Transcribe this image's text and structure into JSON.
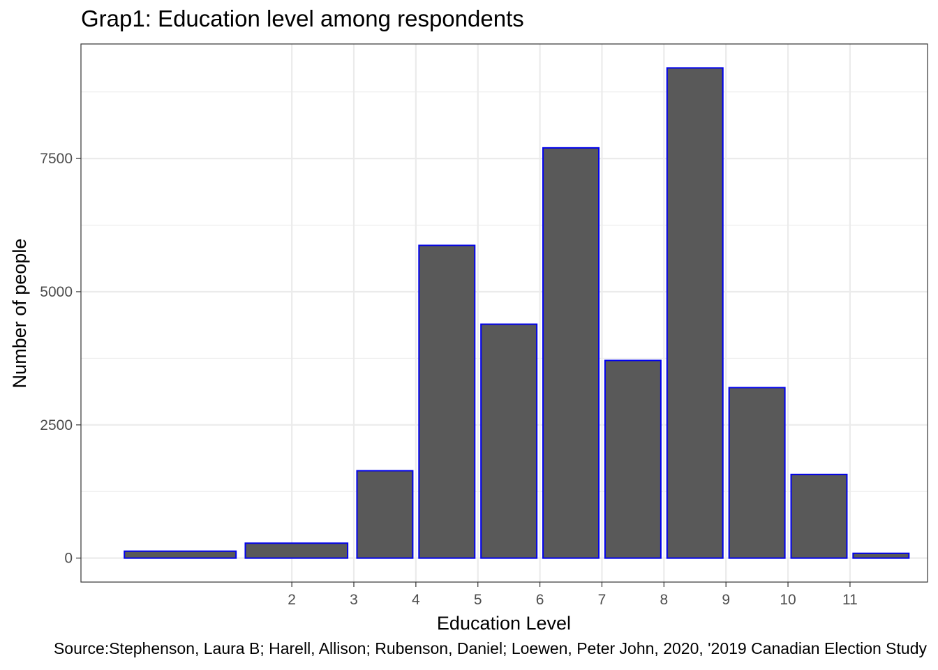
{
  "chart_data": {
    "type": "bar",
    "title": "Grap1: Education level among respondents",
    "xlabel": "Education Level",
    "ylabel": "Number of people",
    "caption": "Source:Stephenson, Laura B; Harell, Allison; Rubenson, Daniel; Loewen, Peter John, 2020, '2019 Canadian Election Study",
    "x_ticks": [
      2,
      3,
      4,
      5,
      6,
      7,
      8,
      9,
      10,
      11
    ],
    "y_ticks": [
      0,
      2500,
      5000,
      7500
    ],
    "xlim": [
      -1.4,
      12.25
    ],
    "ylim": [
      -450,
      9650
    ],
    "bars": [
      {
        "x0": -0.7,
        "x1": 1.1,
        "value": 130
      },
      {
        "x0": 1.25,
        "x1": 2.9,
        "value": 280
      },
      {
        "x0": 3.05,
        "x1": 3.95,
        "value": 1640
      },
      {
        "x0": 4.05,
        "x1": 4.95,
        "value": 5870
      },
      {
        "x0": 5.05,
        "x1": 5.95,
        "value": 4390
      },
      {
        "x0": 6.05,
        "x1": 6.95,
        "value": 7700
      },
      {
        "x0": 7.05,
        "x1": 7.95,
        "value": 3710
      },
      {
        "x0": 8.05,
        "x1": 8.95,
        "value": 9200
      },
      {
        "x0": 9.05,
        "x1": 9.95,
        "value": 3200
      },
      {
        "x0": 10.05,
        "x1": 10.95,
        "value": 1570
      },
      {
        "x0": 11.05,
        "x1": 11.95,
        "value": 90
      }
    ],
    "grid": true,
    "legend": "none",
    "colors": {
      "bar_fill": "#595959",
      "bar_border": "#0000ee",
      "grid": "#ebebeb",
      "panel_border": "#333333"
    }
  }
}
